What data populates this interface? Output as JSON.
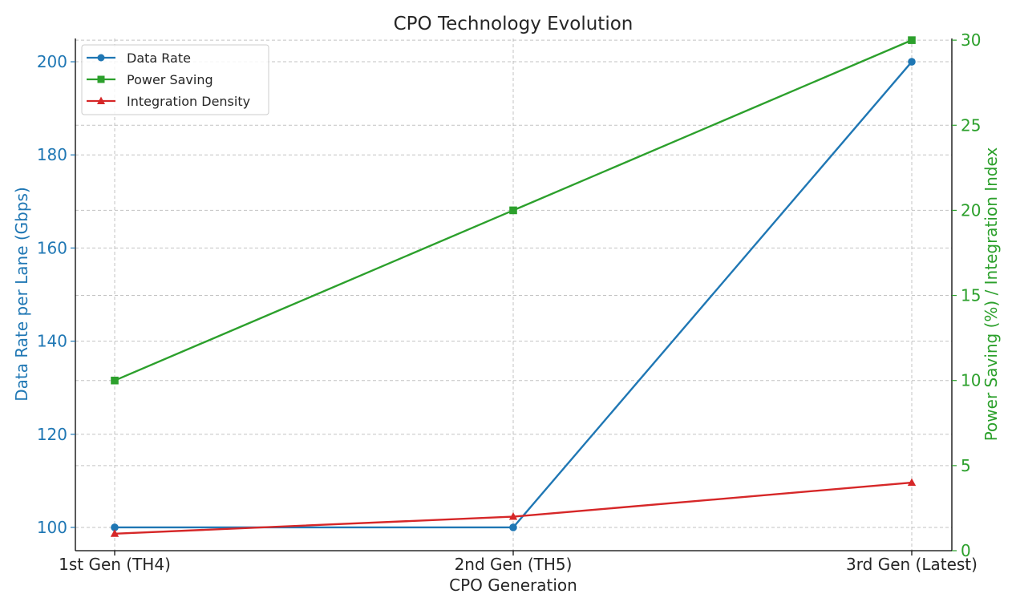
{
  "chart_data": {
    "type": "line",
    "title": "CPO Technology Evolution",
    "xlabel": "CPO Generation",
    "ylabel": "Data Rate per Lane (Gbps)",
    "ylabel_right": "Power Saving (%) / Integration Index",
    "categories": [
      "1st Gen (TH4)",
      "2nd Gen (TH5)",
      "3rd Gen (Latest)"
    ],
    "ylim": [
      95,
      205
    ],
    "ylim_right": [
      0,
      30.1
    ],
    "yticks": [
      100,
      120,
      140,
      160,
      180,
      200
    ],
    "yticks_right": [
      0,
      5,
      10,
      15,
      20,
      25,
      30
    ],
    "grid": true,
    "legend_position": "top-left",
    "series": [
      {
        "name": "Data Rate",
        "axis": "left",
        "values": [
          100,
          100,
          200
        ],
        "color": "#1f77b4",
        "marker": "circle"
      },
      {
        "name": "Power Saving",
        "axis": "right",
        "values": [
          10,
          20,
          30
        ],
        "color": "#2ca02c",
        "marker": "square"
      },
      {
        "name": "Integration Density",
        "axis": "right",
        "values": [
          1,
          2,
          4
        ],
        "color": "#d62728",
        "marker": "triangle"
      }
    ],
    "colors": {
      "left_axis": "#1f77b4",
      "right_axis": "#2ca02c",
      "text": "#262626"
    }
  }
}
